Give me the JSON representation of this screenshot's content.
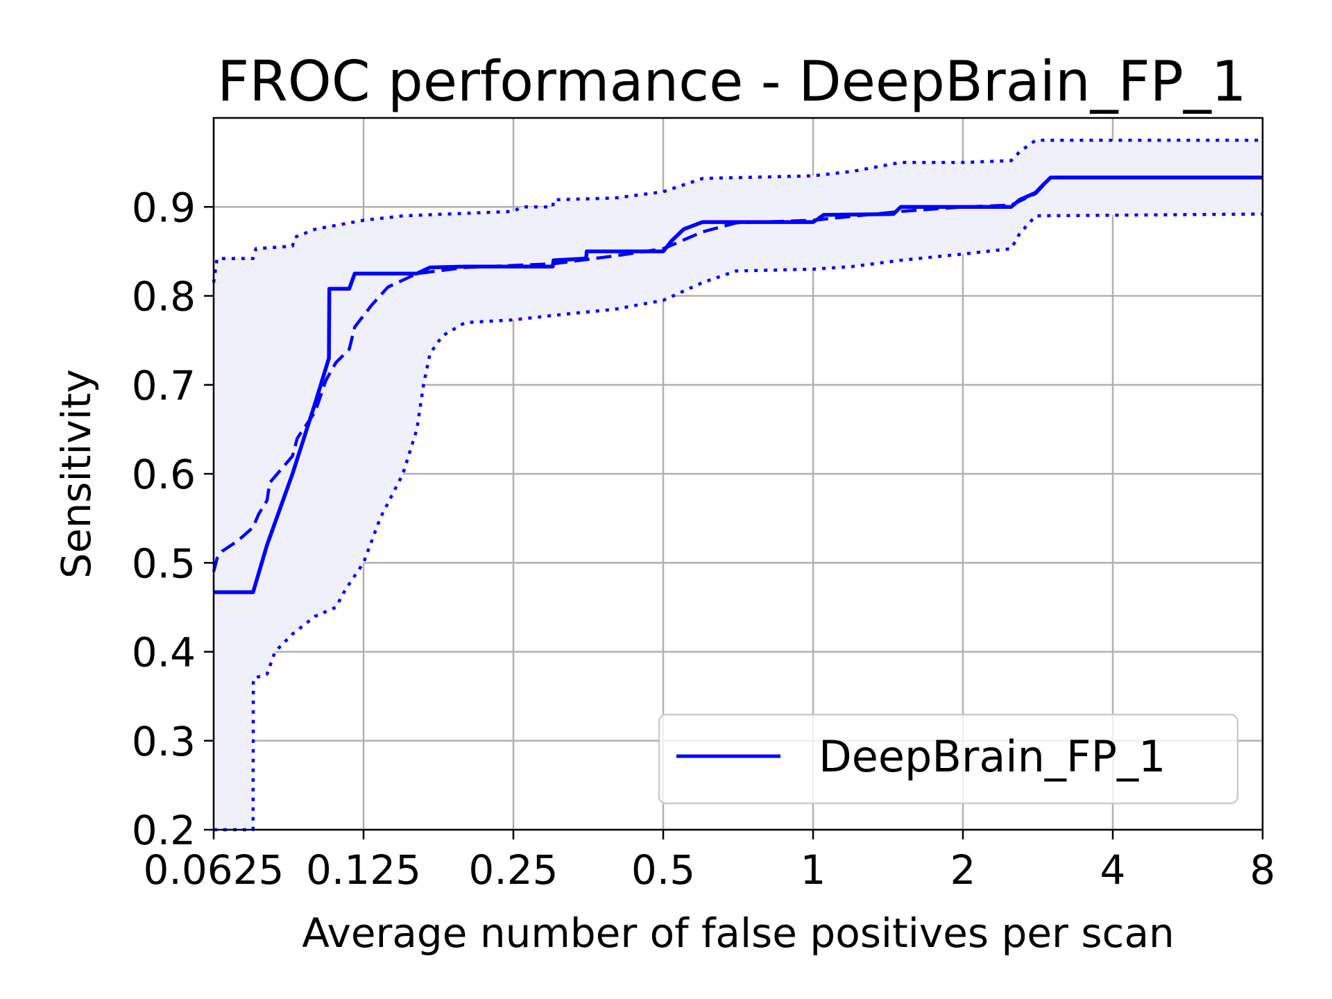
{
  "chart_data": {
    "type": "line",
    "title": "FROC performance - DeepBrain_FP_1",
    "xlabel": "Average number of false positives per scan",
    "ylabel": "Sensitivity",
    "xscale": "log2",
    "xlim": [
      0.0625,
      8
    ],
    "ylim": [
      0.2,
      1.0
    ],
    "xticks": [
      0.0625,
      0.125,
      0.25,
      0.5,
      1,
      2,
      4,
      8
    ],
    "xtick_labels": [
      "0.0625",
      "0.125",
      "0.25",
      "0.5",
      "1",
      "2",
      "4",
      "8"
    ],
    "yticks": [
      0.2,
      0.3,
      0.4,
      0.5,
      0.6,
      0.7,
      0.8,
      0.9
    ],
    "ytick_labels": [
      "0.2",
      "0.3",
      "0.4",
      "0.5",
      "0.6",
      "0.7",
      "0.8",
      "0.9"
    ],
    "grid": true,
    "legend": {
      "position": "lower-right",
      "entries": [
        "DeepBrain_FP_1"
      ]
    },
    "color": "#0000ff",
    "band_color": "#f0f0fb",
    "series": [
      {
        "name": "DeepBrain_FP_1",
        "style": "solid",
        "x": [
          0.0625,
          0.075,
          0.08,
          0.09,
          0.1,
          0.1065,
          0.1067,
          0.117,
          0.12,
          0.15,
          0.16,
          0.17,
          0.2,
          0.3,
          0.301,
          0.35,
          0.351,
          0.5,
          0.52,
          0.55,
          0.6,
          0.7,
          1.0,
          1.02,
          1.05,
          1.45,
          1.5,
          2.5,
          2.6,
          2.8,
          2.9,
          3.0,
          8.0
        ],
        "y": [
          0.467,
          0.467,
          0.52,
          0.6,
          0.68,
          0.73,
          0.808,
          0.808,
          0.825,
          0.825,
          0.825,
          0.832,
          0.833,
          0.833,
          0.84,
          0.842,
          0.85,
          0.85,
          0.862,
          0.875,
          0.883,
          0.883,
          0.883,
          0.886,
          0.891,
          0.892,
          0.9,
          0.9,
          0.908,
          0.916,
          0.925,
          0.933,
          0.933
        ]
      },
      {
        "style": "dashed",
        "x": [
          0.0625,
          0.0635,
          0.065,
          0.07,
          0.075,
          0.077,
          0.08,
          0.081,
          0.09,
          0.092,
          0.1,
          0.105,
          0.11,
          0.117,
          0.12,
          0.13,
          0.14,
          0.16,
          0.2,
          0.3,
          0.4,
          0.5,
          0.6,
          0.7,
          1.0,
          1.5,
          2.0,
          2.5,
          2.8,
          3.0,
          8.0
        ],
        "y": [
          0.49,
          0.505,
          0.513,
          0.525,
          0.54,
          0.555,
          0.57,
          0.59,
          0.62,
          0.64,
          0.67,
          0.705,
          0.725,
          0.74,
          0.765,
          0.79,
          0.81,
          0.825,
          0.832,
          0.836,
          0.845,
          0.853,
          0.872,
          0.882,
          0.885,
          0.895,
          0.9,
          0.902,
          0.915,
          0.933,
          0.933
        ]
      },
      {
        "style": "dotted",
        "x": [
          0.0625,
          0.0635,
          0.075,
          0.076,
          0.09,
          0.091,
          0.1,
          0.125,
          0.15,
          0.25,
          0.26,
          0.3,
          0.301,
          0.4,
          0.5,
          0.6,
          1.0,
          1.2,
          1.5,
          2.0,
          2.5,
          2.6,
          2.8,
          8.0
        ],
        "y": [
          0.815,
          0.842,
          0.842,
          0.853,
          0.856,
          0.866,
          0.875,
          0.885,
          0.89,
          0.895,
          0.9,
          0.9,
          0.908,
          0.91,
          0.917,
          0.932,
          0.935,
          0.94,
          0.95,
          0.95,
          0.952,
          0.962,
          0.975,
          0.975
        ]
      },
      {
        "style": "dotted",
        "x": [
          0.0625,
          0.075,
          0.0751,
          0.08,
          0.083,
          0.09,
          0.1,
          0.11,
          0.115,
          0.125,
          0.135,
          0.15,
          0.16,
          0.165,
          0.17,
          0.18,
          0.2,
          0.25,
          0.3,
          0.4,
          0.5,
          0.6,
          0.7,
          1.0,
          1.2,
          1.5,
          2.0,
          2.5,
          2.6,
          2.8,
          8.0
        ],
        "y": [
          0.2,
          0.2,
          0.37,
          0.375,
          0.4,
          0.42,
          0.44,
          0.45,
          0.47,
          0.5,
          0.55,
          0.6,
          0.65,
          0.7,
          0.735,
          0.755,
          0.77,
          0.773,
          0.778,
          0.785,
          0.795,
          0.815,
          0.828,
          0.83,
          0.833,
          0.84,
          0.847,
          0.853,
          0.87,
          0.89,
          0.892
        ]
      }
    ]
  }
}
